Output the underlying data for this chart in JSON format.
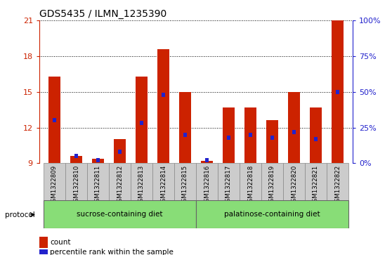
{
  "title": "GDS5435 / ILMN_1235390",
  "samples": [
    "GSM1322809",
    "GSM1322810",
    "GSM1322811",
    "GSM1322812",
    "GSM1322813",
    "GSM1322814",
    "GSM1322815",
    "GSM1322816",
    "GSM1322817",
    "GSM1322818",
    "GSM1322819",
    "GSM1322820",
    "GSM1322821",
    "GSM1322822"
  ],
  "count_values": [
    16.3,
    9.6,
    9.4,
    11.0,
    16.3,
    18.6,
    15.0,
    9.2,
    13.7,
    13.7,
    12.6,
    15.0,
    13.7,
    21.0
  ],
  "percentile_values": [
    30,
    5,
    2,
    8,
    28,
    48,
    20,
    2,
    18,
    20,
    18,
    22,
    17,
    50
  ],
  "ymin": 9,
  "ymax": 21,
  "yticks": [
    9,
    12,
    15,
    18,
    21
  ],
  "right_yticks": [
    0,
    25,
    50,
    75,
    100
  ],
  "right_ytick_labels": [
    "0%",
    "25%",
    "50%",
    "75%",
    "100%"
  ],
  "bar_color": "#cc2200",
  "blue_color": "#2222cc",
  "group1_label": "sucrose-containing diet",
  "group2_label": "palatinose-containing diet",
  "group_bg_color": "#88dd77",
  "xlabel_bg_color": "#cccccc",
  "bar_width": 0.55,
  "protocol_label": "protocol",
  "legend_count": "count",
  "legend_percentile": "percentile rank within the sample"
}
